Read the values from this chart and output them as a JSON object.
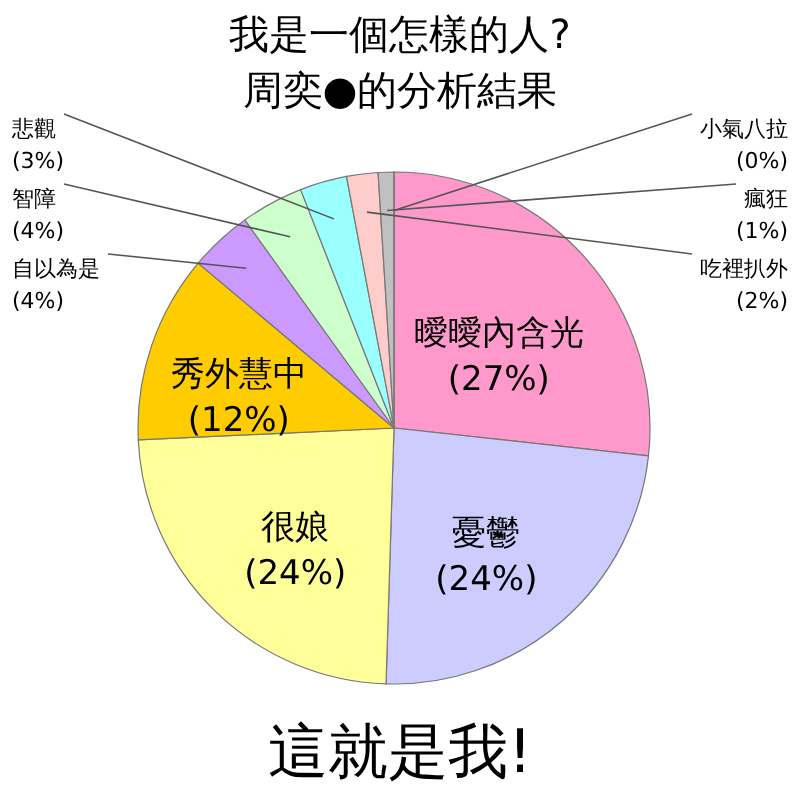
{
  "chart_data": {
    "type": "pie",
    "title": "我是一個怎樣的人?",
    "subtitle": "周奕●的分析結果",
    "categories": [
      "曖曖內含光",
      "憂鬱",
      "很娘",
      "秀外慧中",
      "自以為是",
      "智障",
      "悲觀",
      "吃裡扒外",
      "瘋狂",
      "小氣八拉"
    ],
    "values": [
      27,
      24,
      24,
      12,
      4,
      4,
      3,
      2,
      1,
      0
    ],
    "colors": [
      "#ff99cc",
      "#ccccff",
      "#ffff99",
      "#ffcc00",
      "#cc99ff",
      "#ccffcc",
      "#99ffff",
      "#ffcccc",
      "#c0c0c0",
      "#99ccff"
    ],
    "value_labels": [
      "(27%)",
      "(24%)",
      "(24%)",
      "(12%)",
      "(4%)",
      "(4%)",
      "(3%)",
      "(2%)",
      "(1%)",
      "(0%)"
    ],
    "annotations": [
      "這就是我!"
    ]
  }
}
